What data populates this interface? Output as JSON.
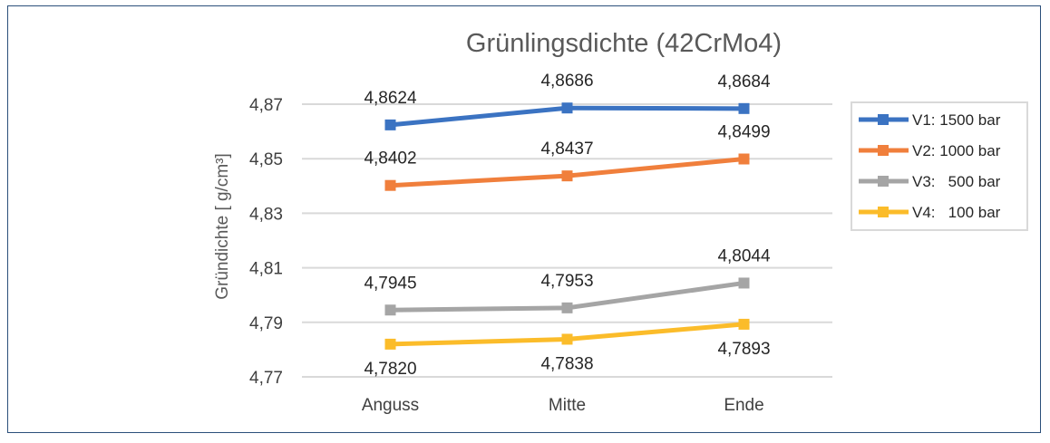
{
  "chart_data": {
    "type": "line",
    "title": "Grünlingsdichte (42CrMo4)",
    "ylabel": "Gründichte  [ g/cm³]",
    "xlabel": "",
    "categories": [
      "Anguss",
      "Mitte",
      "Ende"
    ],
    "ylim": [
      4.77,
      4.87
    ],
    "yticks": [
      4.77,
      4.79,
      4.81,
      4.83,
      4.85,
      4.87
    ],
    "ytick_labels": [
      "4,77",
      "4,79",
      "4,81",
      "4,83",
      "4,85",
      "4,87"
    ],
    "grid": true,
    "legend_position": "right",
    "series": [
      {
        "name": "V1: 1500 bar",
        "color": "#3b73c2",
        "values": [
          4.8624,
          4.8686,
          4.8684
        ],
        "labels": [
          "4,8624",
          "4,8686",
          "4,8684"
        ],
        "label_position": "above"
      },
      {
        "name": "V2: 1000 bar",
        "color": "#f07f3c",
        "values": [
          4.8402,
          4.8437,
          4.8499
        ],
        "labels": [
          "4,8402",
          "4,8437",
          "4,8499"
        ],
        "label_position": "above"
      },
      {
        "name": "V3:   500 bar",
        "color": "#a5a5a5",
        "values": [
          4.7945,
          4.7953,
          4.8044
        ],
        "labels": [
          "4,7945",
          "4,7953",
          "4,8044"
        ],
        "label_position": "above"
      },
      {
        "name": "V4:   100 bar",
        "color": "#fbbc2a",
        "values": [
          4.782,
          4.7838,
          4.7893
        ],
        "labels": [
          "4,7820",
          "4,7838",
          "4,7893"
        ],
        "label_position": "below"
      }
    ]
  }
}
